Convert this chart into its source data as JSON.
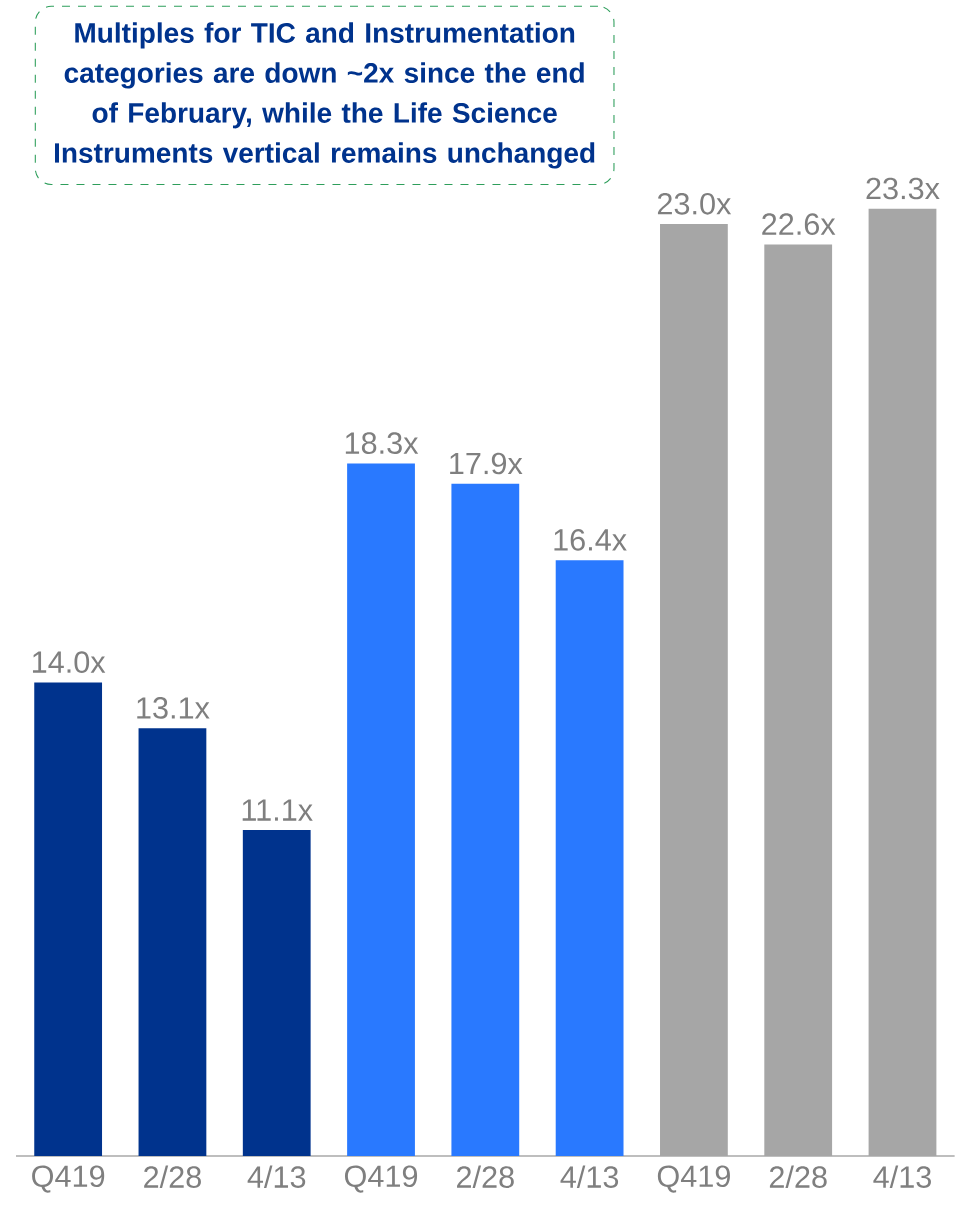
{
  "chart_data": {
    "type": "bar",
    "categories": [
      "Q419",
      "2/28",
      "4/13",
      "Q419",
      "2/28",
      "4/13",
      "Q419",
      "2/28",
      "4/13"
    ],
    "values": [
      14.0,
      13.1,
      11.1,
      18.3,
      17.9,
      16.4,
      23.0,
      22.6,
      23.3
    ],
    "value_labels": [
      "14.0x",
      "13.1x",
      "11.1x",
      "18.3x",
      "17.9x",
      "16.4x",
      "23.0x",
      "22.6x",
      "23.3x"
    ],
    "colors": [
      "#00338d",
      "#00338d",
      "#00338d",
      "#2979ff",
      "#2979ff",
      "#2979ff",
      "#a6a6a6",
      "#a6a6a6",
      "#a6a6a6"
    ],
    "ylim": [
      4.7,
      27.4
    ],
    "annotations": [
      "Multiples for TIC and Instrumentation categories are down ~2x since the end of February, while the Life Science Instruments vertical remains unchanged"
    ]
  }
}
